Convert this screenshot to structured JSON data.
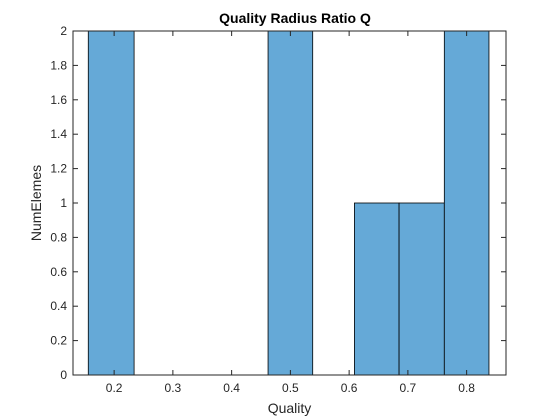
{
  "chart_data": {
    "type": "bar",
    "title": "Quality Radius Ratio Q",
    "xlabel": "Quality",
    "ylabel": "NumElemes",
    "bin_edges": [
      0.156,
      0.2335,
      0.311,
      0.3885,
      0.466,
      0.5435,
      0.621,
      0.6985,
      0.776,
      0.8535
    ],
    "bin_counts_visible": [
      2,
      0,
      0,
      0,
      2,
      0,
      1,
      1,
      2
    ],
    "bins": [
      {
        "x0": 0.156,
        "x1": 0.234,
        "value": 2
      },
      {
        "x0": 0.462,
        "x1": 0.538,
        "value": 2
      },
      {
        "x0": 0.609,
        "x1": 0.685,
        "value": 1
      },
      {
        "x0": 0.685,
        "x1": 0.762,
        "value": 1
      },
      {
        "x0": 0.762,
        "x1": 0.838,
        "value": 2
      }
    ],
    "xlim": [
      0.13,
      0.867
    ],
    "ylim": [
      0,
      2
    ],
    "xticks": [
      "0.2",
      "0.3",
      "0.4",
      "0.5",
      "0.6",
      "0.7",
      "0.8"
    ],
    "xtick_values": [
      0.2,
      0.3,
      0.4,
      0.5,
      0.6,
      0.7,
      0.8
    ],
    "yticks": [
      "0",
      "0.2",
      "0.4",
      "0.6",
      "0.8",
      "1",
      "1.2",
      "1.4",
      "1.6",
      "1.8",
      "2"
    ],
    "ytick_values": [
      0,
      0.2,
      0.4,
      0.6,
      0.8,
      1,
      1.2,
      1.4,
      1.6,
      1.8,
      2
    ],
    "grid": false,
    "colors": {
      "bar_fill": "#65a9d7",
      "bar_edge": "#000000",
      "axis": "#262626"
    }
  }
}
